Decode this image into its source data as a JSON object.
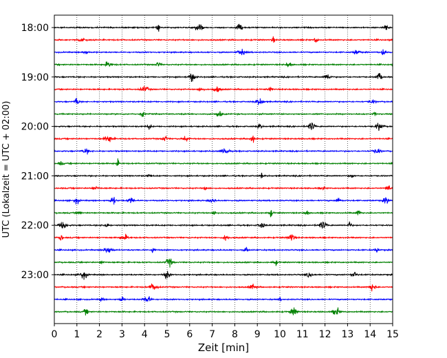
{
  "chart_data": {
    "type": "line",
    "subtype": "helicorder",
    "title": "",
    "xlabel": "Zeit  [min]",
    "ylabel": "UTC (Lokalzeit = UTC + 02:00)",
    "xlim": [
      0,
      15
    ],
    "x_ticks": [
      "0",
      "1",
      "2",
      "3",
      "4",
      "5",
      "6",
      "7",
      "8",
      "9",
      "10",
      "11",
      "12",
      "13",
      "14",
      "15"
    ],
    "y_ticks": [
      "18:00",
      "19:00",
      "20:00",
      "21:00",
      "22:00",
      "23:00"
    ],
    "grid": "vertical dotted lines at each minute",
    "line_interval_minutes": 15,
    "line_colors_cycle": [
      "#000000",
      "#ff0000",
      "#0000ff",
      "#008000"
    ],
    "series": [
      {
        "start": "18:00",
        "bursts_min": [
          8.2,
          14.7,
          4.6,
          6.4
        ]
      },
      {
        "start": "18:15",
        "bursts_min": [
          9.7,
          1.2,
          11.6
        ]
      },
      {
        "start": "18:30",
        "bursts_min": [
          8.3,
          1.4,
          14.6,
          13.4
        ]
      },
      {
        "start": "18:45",
        "bursts_min": [
          10.4,
          4.6,
          2.4
        ]
      },
      {
        "start": "19:00",
        "bursts_min": [
          14.4,
          6.1,
          12.1
        ]
      },
      {
        "start": "19:15",
        "bursts_min": [
          4.0,
          6.5,
          7.2,
          9.6
        ]
      },
      {
        "start": "19:30",
        "bursts_min": [
          9.1,
          1.0,
          14.1
        ]
      },
      {
        "start": "19:45",
        "bursts_min": [
          7.3,
          3.9,
          14.2
        ]
      },
      {
        "start": "20:00",
        "bursts_min": [
          9.1,
          4.2,
          11.4,
          14.4
        ]
      },
      {
        "start": "20:15",
        "bursts_min": [
          4.9,
          5.8,
          2.4,
          8.8
        ]
      },
      {
        "start": "20:30",
        "bursts_min": [
          7.6,
          1.4,
          14.3
        ]
      },
      {
        "start": "20:45",
        "bursts_min": [
          0.3,
          2.8
        ]
      },
      {
        "start": "21:00",
        "bursts_min": [
          9.2,
          13.2,
          4.2
        ]
      },
      {
        "start": "21:15",
        "bursts_min": [
          1.8,
          11.9,
          14.8,
          6.7
        ]
      },
      {
        "start": "21:30",
        "bursts_min": [
          1.0,
          3.4,
          7.0,
          12.6,
          14.7,
          2.6
        ]
      },
      {
        "start": "21:45",
        "bursts_min": [
          1.1,
          7.1,
          9.6,
          11.2,
          13.5
        ]
      },
      {
        "start": "22:00",
        "bursts_min": [
          0.4,
          2.3,
          9.2,
          11.9,
          13.1
        ]
      },
      {
        "start": "22:15",
        "bursts_min": [
          0.3,
          3.1,
          7.6,
          10.5
        ]
      },
      {
        "start": "22:30",
        "bursts_min": [
          2.4,
          4.4,
          8.5,
          14.3
        ]
      },
      {
        "start": "22:45",
        "bursts_min": [
          5.1,
          9.8,
          2.1
        ]
      },
      {
        "start": "23:00",
        "bursts_min": [
          1.3,
          5.0,
          11.3,
          13.3
        ]
      },
      {
        "start": "23:15",
        "bursts_min": [
          4.4,
          8.8,
          14.1
        ]
      },
      {
        "start": "23:30",
        "bursts_min": [
          2.1,
          3.0,
          4.1,
          10.0
        ]
      },
      {
        "start": "23:45",
        "bursts_min": [
          10.6,
          12.5,
          1.4
        ]
      }
    ]
  }
}
